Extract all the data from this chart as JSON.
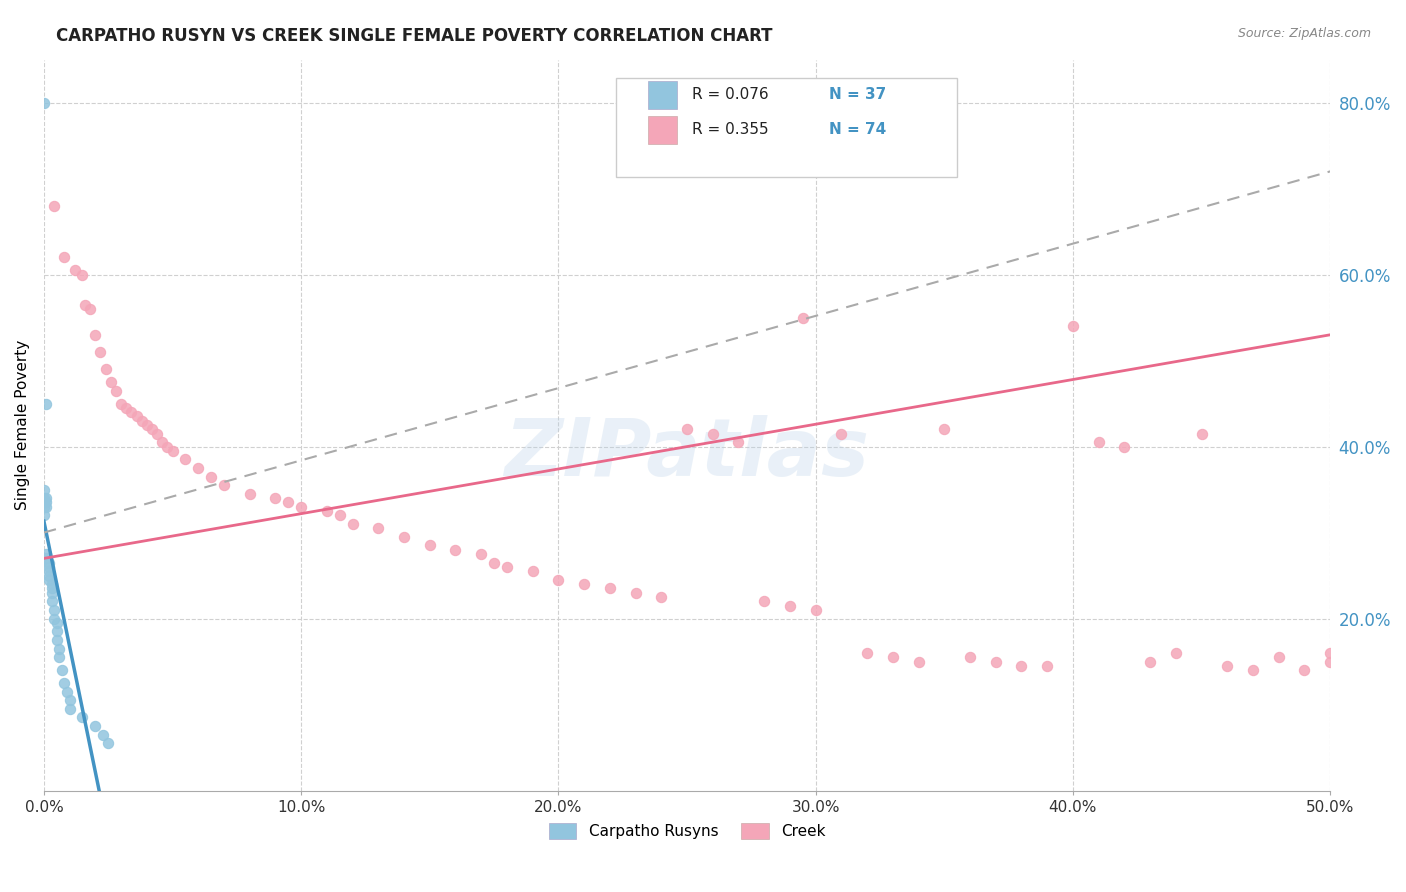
{
  "title": "CARPATHO RUSYN VS CREEK SINGLE FEMALE POVERTY CORRELATION CHART",
  "source": "Source: ZipAtlas.com",
  "ylabel": "Single Female Poverty",
  "y_ticks_right": [
    "20.0%",
    "40.0%",
    "60.0%",
    "80.0%"
  ],
  "x_ticks": [
    "0.0%",
    "10.0%",
    "20.0%",
    "30.0%",
    "40.0%",
    "50.0%"
  ],
  "legend_label1": "Carpatho Rusyns",
  "legend_label2": "Creek",
  "legend_r1": "R = 0.076",
  "legend_n1": "N = 37",
  "legend_r2": "R = 0.355",
  "legend_n2": "N = 74",
  "color_blue": "#92c5de",
  "color_pink": "#f4a6b8",
  "trendline_blue_color": "#4393c3",
  "trendline_pink_color": "#e8688a",
  "trendline_dashed_color": "#aaaaaa",
  "watermark": "ZIPatlas",
  "background_color": "#ffffff",
  "carpatho_x": [
    0.0,
    0.0,
    0.0,
    0.0,
    0.0,
    0.0,
    0.001,
    0.001,
    0.001,
    0.001,
    0.001,
    0.001,
    0.002,
    0.002,
    0.002,
    0.002,
    0.002,
    0.003,
    0.003,
    0.003,
    0.003,
    0.004,
    0.004,
    0.005,
    0.005,
    0.005,
    0.006,
    0.006,
    0.007,
    0.008,
    0.009,
    0.01,
    0.01,
    0.015,
    0.02,
    0.023,
    0.025
  ],
  "carpatho_y": [
    0.8,
    0.35,
    0.34,
    0.335,
    0.33,
    0.32,
    0.45,
    0.34,
    0.335,
    0.33,
    0.275,
    0.27,
    0.265,
    0.26,
    0.255,
    0.25,
    0.245,
    0.24,
    0.235,
    0.23,
    0.22,
    0.21,
    0.2,
    0.195,
    0.185,
    0.175,
    0.165,
    0.155,
    0.14,
    0.125,
    0.115,
    0.105,
    0.095,
    0.085,
    0.075,
    0.065,
    0.055
  ],
  "creek_x": [
    0.004,
    0.008,
    0.012,
    0.015,
    0.016,
    0.018,
    0.02,
    0.022,
    0.024,
    0.026,
    0.028,
    0.03,
    0.032,
    0.034,
    0.036,
    0.038,
    0.04,
    0.042,
    0.044,
    0.046,
    0.048,
    0.05,
    0.055,
    0.06,
    0.065,
    0.07,
    0.08,
    0.09,
    0.095,
    0.1,
    0.11,
    0.115,
    0.12,
    0.13,
    0.14,
    0.15,
    0.16,
    0.17,
    0.175,
    0.18,
    0.19,
    0.2,
    0.21,
    0.22,
    0.23,
    0.24,
    0.25,
    0.26,
    0.27,
    0.28,
    0.29,
    0.295,
    0.3,
    0.31,
    0.32,
    0.33,
    0.34,
    0.35,
    0.36,
    0.37,
    0.38,
    0.39,
    0.4,
    0.41,
    0.42,
    0.43,
    0.44,
    0.45,
    0.46,
    0.47,
    0.48,
    0.49,
    0.5,
    0.5
  ],
  "creek_y": [
    0.68,
    0.62,
    0.605,
    0.6,
    0.565,
    0.56,
    0.53,
    0.51,
    0.49,
    0.475,
    0.465,
    0.45,
    0.445,
    0.44,
    0.435,
    0.43,
    0.425,
    0.42,
    0.415,
    0.405,
    0.4,
    0.395,
    0.385,
    0.375,
    0.365,
    0.355,
    0.345,
    0.34,
    0.335,
    0.33,
    0.325,
    0.32,
    0.31,
    0.305,
    0.295,
    0.285,
    0.28,
    0.275,
    0.265,
    0.26,
    0.255,
    0.245,
    0.24,
    0.235,
    0.23,
    0.225,
    0.42,
    0.415,
    0.405,
    0.22,
    0.215,
    0.55,
    0.21,
    0.415,
    0.16,
    0.155,
    0.15,
    0.42,
    0.155,
    0.15,
    0.145,
    0.145,
    0.54,
    0.405,
    0.4,
    0.15,
    0.16,
    0.415,
    0.145,
    0.14,
    0.155,
    0.14,
    0.16,
    0.15
  ],
  "xlim": [
    0.0,
    0.5
  ],
  "ylim": [
    0.0,
    0.85
  ],
  "xticks": [
    0.0,
    0.1,
    0.2,
    0.3,
    0.4,
    0.5
  ],
  "yticks_right": [
    0.2,
    0.4,
    0.6,
    0.8
  ]
}
